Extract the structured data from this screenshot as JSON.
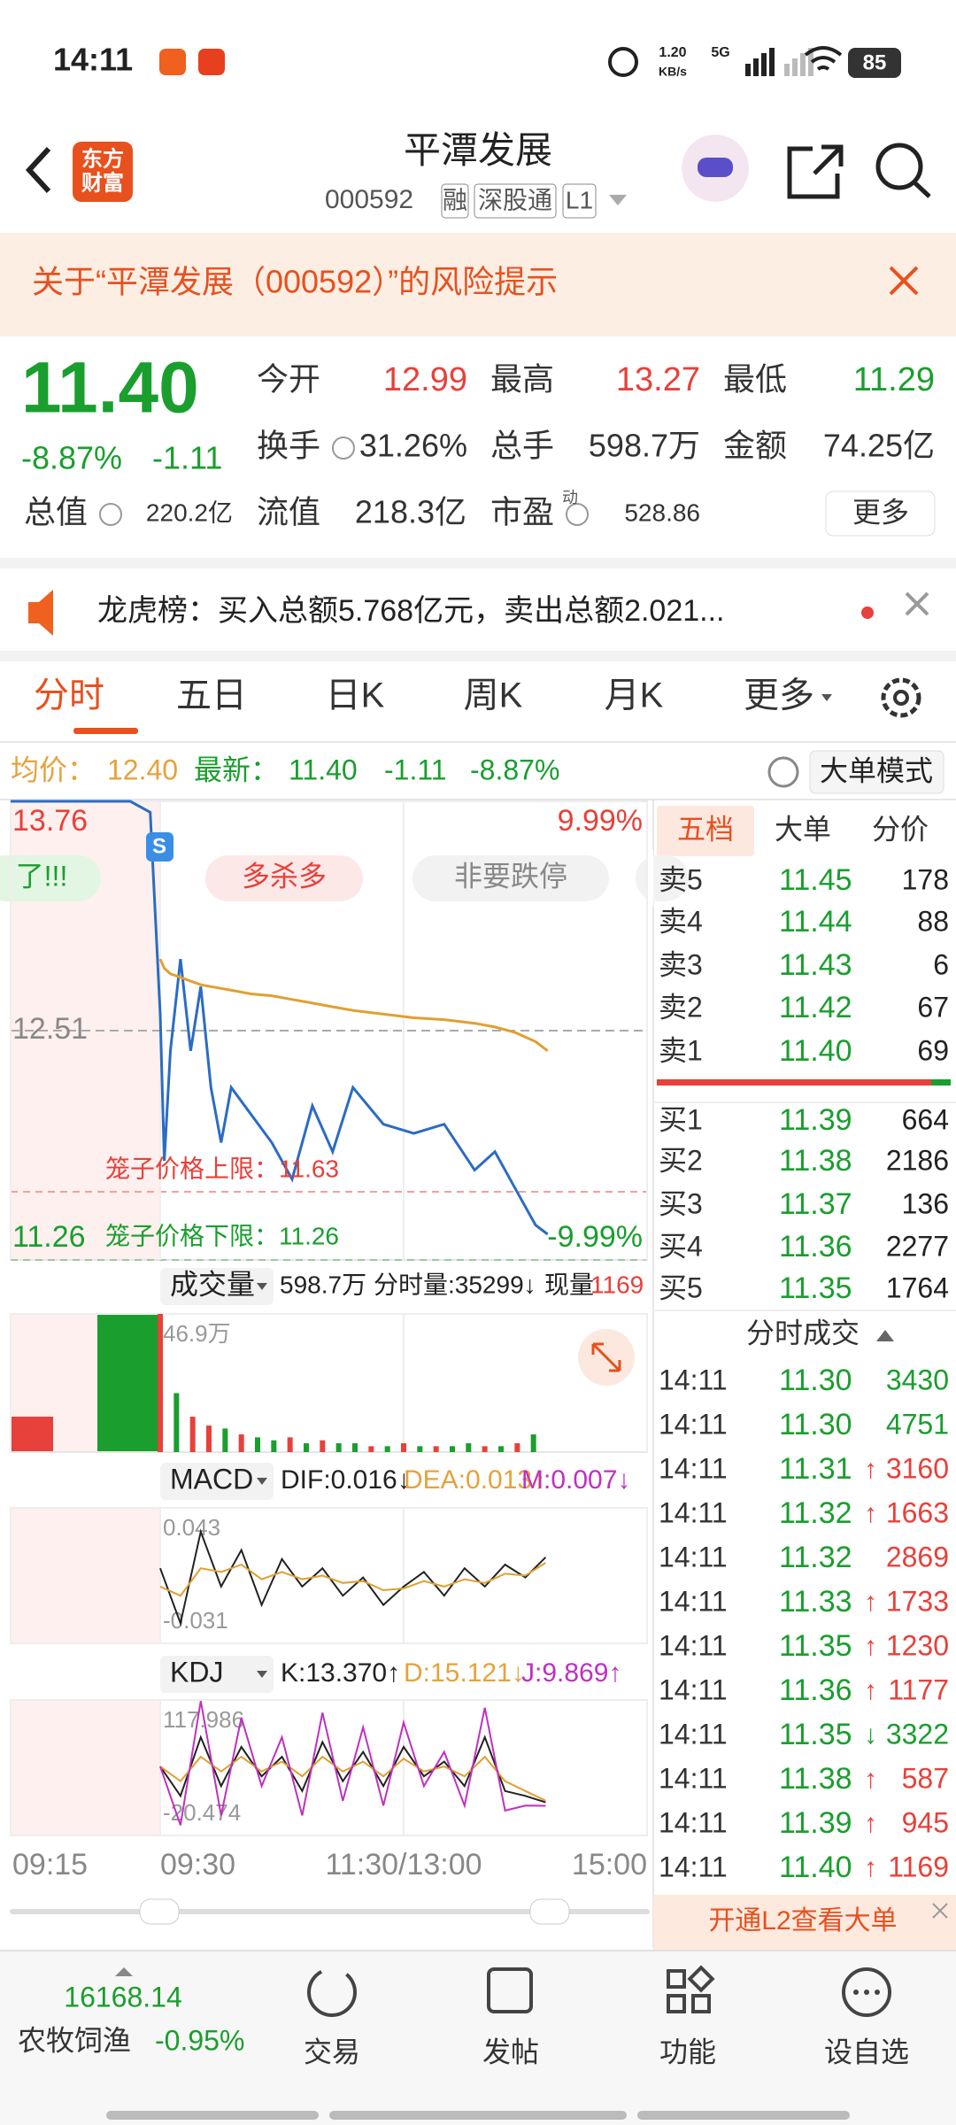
{
  "status": {
    "time": "14:11",
    "speed": "1.20",
    "speed_unit": "KB/s",
    "network": "5G",
    "battery": "85"
  },
  "header": {
    "logo": [
      "东方",
      "财富"
    ],
    "title": "平潭发展",
    "code": "000592",
    "tags": [
      "融",
      "深股通",
      "L1"
    ]
  },
  "notice": "关于“平潭发展（000592）”的风险提示",
  "quote": {
    "price": "11.40",
    "change_pct": "-8.87%",
    "change": "-1.11",
    "stats": [
      {
        "label": "今开",
        "value": "12.99"
      },
      {
        "label": "最高",
        "value": "13.27"
      },
      {
        "label": "最低",
        "value": "11.29"
      },
      {
        "label": "换手",
        "value": "31.26%"
      },
      {
        "label": "总手",
        "value": "598.7万"
      },
      {
        "label": "金额",
        "value": "74.25亿"
      },
      {
        "label": "总值",
        "value": "220.2亿"
      },
      {
        "label": "流值",
        "value": "218.3亿"
      },
      {
        "label": "市盈",
        "value": "528.86",
        "sup": "动"
      }
    ],
    "more": "更多"
  },
  "news": "龙虎榜：买入总额5.768亿元，卖出总额2.021...",
  "tabs": [
    "分时",
    "五日",
    "日K",
    "周K",
    "月K",
    "更多"
  ],
  "summary": {
    "avg_label": "均价：",
    "avg": "12.40",
    "last_label": "最新：",
    "last": "11.40",
    "change": "-1.11",
    "change_pct": "-8.87%",
    "mode": "大单模式"
  },
  "tags": [
    "了!!!",
    "多杀多",
    "非要跌停"
  ],
  "marker": "S",
  "cage": {
    "upper": "笼子价格上限：11.63",
    "lower": "笼子价格下限：11.26"
  },
  "chart_data": [
    {
      "type": "line",
      "x": [
        -15,
        -3,
        -1,
        0,
        2,
        5,
        10,
        15,
        20,
        25,
        30,
        35,
        45,
        55,
        65,
        75,
        85,
        95,
        110,
        125,
        140,
        155,
        165,
        175,
        185,
        191
      ],
      "xlim": [
        -15,
        240
      ],
      "xticks": [
        {
          "value": -15,
          "label": "09:15"
        },
        {
          "value": 0,
          "label": "09:30"
        },
        {
          "value": 120,
          "label": "11:30/13:00"
        },
        {
          "value": 240,
          "label": "15:00"
        }
      ],
      "ylim": [
        11.26,
        13.76
      ],
      "yticks": [
        13.76,
        12.51,
        11.26
      ],
      "y2lim": [
        -9.99,
        9.99
      ],
      "y2ticks": [
        {
          "value": 9.99,
          "label": "9.99%"
        },
        {
          "value": -9.99,
          "label": "-9.99%"
        }
      ],
      "series": [
        {
          "color": "#2b6cc4",
          "values": [
            13.76,
            13.76,
            13.7,
            12.6,
            11.8,
            12.4,
            12.9,
            12.4,
            12.75,
            12.2,
            11.9,
            12.2,
            12.05,
            11.9,
            11.7,
            12.1,
            11.85,
            12.2,
            12.0,
            11.95,
            12.0,
            11.75,
            11.85,
            11.65,
            11.45,
            11.4
          ]
        },
        {
          "color": "#e0a030",
          "values": [
            null,
            null,
            null,
            12.9,
            12.85,
            12.82,
            12.8,
            12.78,
            12.76,
            12.75,
            12.74,
            12.73,
            12.71,
            12.7,
            12.68,
            12.66,
            12.64,
            12.62,
            12.6,
            12.58,
            12.57,
            12.55,
            12.53,
            12.5,
            12.45,
            12.4
          ]
        }
      ]
    },
    {
      "type": "bar",
      "x": [
        0,
        8,
        16,
        24,
        32,
        40,
        48,
        56,
        64,
        72,
        80,
        88,
        96,
        104,
        112,
        120,
        128,
        136,
        144,
        152,
        160,
        168,
        176,
        184
      ],
      "xlim": [
        -15,
        240
      ],
      "ylim": [
        0,
        46.9
      ],
      "yticks": [
        {
          "value": 46.9,
          "label": "46.9万"
        }
      ],
      "values": [
        46.9,
        20,
        12,
        9,
        8,
        6,
        5,
        4,
        5,
        3,
        4,
        3,
        3,
        2,
        2,
        3,
        2,
        2,
        2,
        3,
        2,
        2,
        3,
        6
      ],
      "colors": [
        "#e8403a",
        "#1a9e2e",
        "#e8403a",
        "#e8403a",
        "#1a9e2e",
        "#e8403a",
        "#1a9e2e",
        "#1a9e2e",
        "#e8403a",
        "#1a9e2e",
        "#e8403a",
        "#1a9e2e",
        "#1a9e2e",
        "#e8403a",
        "#1a9e2e",
        "#e8403a",
        "#1a9e2e",
        "#e8403a",
        "#1a9e2e",
        "#1a9e2e",
        "#e8403a",
        "#1a9e2e",
        "#e8403a",
        "#1a9e2e"
      ]
    },
    {
      "type": "line",
      "x": [
        0,
        10,
        20,
        30,
        40,
        50,
        60,
        70,
        80,
        90,
        100,
        110,
        120,
        130,
        140,
        150,
        160,
        170,
        180,
        190
      ],
      "xlim": [
        -15,
        240
      ],
      "ylim": [
        -0.031,
        0.043
      ],
      "yticks": [
        0.043,
        -0.031
      ],
      "series": [
        {
          "color": "#222222",
          "values": [
            0.01,
            -0.02,
            0.03,
            0.0,
            0.02,
            -0.01,
            0.015,
            0.0,
            0.01,
            -0.005,
            0.005,
            -0.01,
            0.0,
            0.008,
            -0.005,
            0.01,
            0.0,
            0.012,
            0.005,
            0.016
          ]
        },
        {
          "color": "#e0a030",
          "values": [
            0.0,
            -0.005,
            0.01,
            0.008,
            0.012,
            0.004,
            0.008,
            0.004,
            0.006,
            0.002,
            0.003,
            -0.002,
            -0.001,
            0.003,
            0.0,
            0.004,
            0.002,
            0.007,
            0.006,
            0.013
          ]
        }
      ]
    },
    {
      "type": "line",
      "x": [
        0,
        10,
        20,
        30,
        40,
        50,
        60,
        70,
        80,
        90,
        100,
        110,
        120,
        130,
        140,
        150,
        160,
        170,
        180,
        190
      ],
      "xlim": [
        -15,
        240
      ],
      "ylim": [
        -20.474,
        117.986
      ],
      "yticks": [
        117.986,
        -20.474
      ],
      "series": [
        {
          "color": "#222222",
          "values": [
            50,
            20,
            80,
            30,
            70,
            40,
            60,
            25,
            75,
            35,
            65,
            30,
            70,
            40,
            55,
            30,
            80,
            25,
            20,
            13.37
          ]
        },
        {
          "color": "#e0a030",
          "values": [
            50,
            35,
            60,
            45,
            60,
            45,
            55,
            40,
            60,
            45,
            55,
            40,
            58,
            45,
            50,
            40,
            60,
            35,
            25,
            15.121
          ]
        },
        {
          "color": "#c030c0",
          "values": [
            50,
            -10,
            117,
            0,
            100,
            30,
            80,
            0,
            105,
            15,
            90,
            10,
            95,
            30,
            65,
            10,
            110,
            5,
            10,
            9.869
          ]
        }
      ]
    }
  ],
  "volume_header": {
    "name": "成交量",
    "total": "598.7万",
    "minute": "分时量:35299↓",
    "current_label": "现量:",
    "current": "1169"
  },
  "macd_header": {
    "name": "MACD",
    "dif": "DIF:0.016↓",
    "dea": "DEA:0.013↑",
    "m": "M:0.007↓"
  },
  "kdj_header": {
    "name": "KDJ",
    "k": "K:13.370↑",
    "d": "D:15.121↓",
    "j": "J:9.869↑"
  },
  "book": {
    "tabs": [
      "五档",
      "大单",
      "分价"
    ],
    "asks": [
      {
        "label": "卖5",
        "price": "11.45",
        "volume": "178"
      },
      {
        "label": "卖4",
        "price": "11.44",
        "volume": "88"
      },
      {
        "label": "卖3",
        "price": "11.43",
        "volume": "6"
      },
      {
        "label": "卖2",
        "price": "11.42",
        "volume": "67"
      },
      {
        "label": "卖1",
        "price": "11.40",
        "volume": "69"
      }
    ],
    "bids": [
      {
        "label": "买1",
        "price": "11.39",
        "volume": "664"
      },
      {
        "label": "买2",
        "price": "11.38",
        "volume": "2186"
      },
      {
        "label": "买3",
        "price": "11.37",
        "volume": "136"
      },
      {
        "label": "买4",
        "price": "11.36",
        "volume": "2277"
      },
      {
        "label": "买5",
        "price": "11.35",
        "volume": "1764"
      }
    ]
  },
  "trades": {
    "title": "分时成交",
    "rows": [
      {
        "time": "14:11",
        "price": "11.30",
        "volume": "3430",
        "color": "#1a9e2e"
      },
      {
        "time": "14:11",
        "price": "11.30",
        "volume": "4751",
        "color": "#1a9e2e"
      },
      {
        "time": "14:11",
        "price": "11.31",
        "arrow": "↑",
        "volume": "3160",
        "color": "#e8403a"
      },
      {
        "time": "14:11",
        "price": "11.32",
        "arrow": "↑",
        "volume": "1663",
        "color": "#e8403a"
      },
      {
        "time": "14:11",
        "price": "11.32",
        "volume": "2869",
        "color": "#e8403a"
      },
      {
        "time": "14:11",
        "price": "11.33",
        "arrow": "↑",
        "volume": "1733",
        "color": "#e8403a"
      },
      {
        "time": "14:11",
        "price": "11.35",
        "arrow": "↑",
        "volume": "1230",
        "color": "#e8403a"
      },
      {
        "time": "14:11",
        "price": "11.36",
        "arrow": "↑",
        "volume": "1177",
        "color": "#e8403a"
      },
      {
        "time": "14:11",
        "price": "11.35",
        "arrow": "↓",
        "volume": "3322",
        "color": "#1a9e2e"
      },
      {
        "time": "14:11",
        "price": "11.38",
        "arrow": "↑",
        "volume": "587",
        "color": "#e8403a"
      },
      {
        "time": "14:11",
        "price": "11.39",
        "arrow": "↑",
        "volume": "945",
        "color": "#e8403a"
      },
      {
        "time": "14:11",
        "price": "11.40",
        "arrow": "↑",
        "volume": "1169",
        "color": "#e8403a"
      }
    ]
  },
  "l2": "开通L2查看大单",
  "nav": {
    "index_value": "16168.14",
    "index_name": "农牧饲渔",
    "index_change": "-0.95%",
    "items": [
      "交易",
      "发帖",
      "功能",
      "设自选"
    ]
  }
}
